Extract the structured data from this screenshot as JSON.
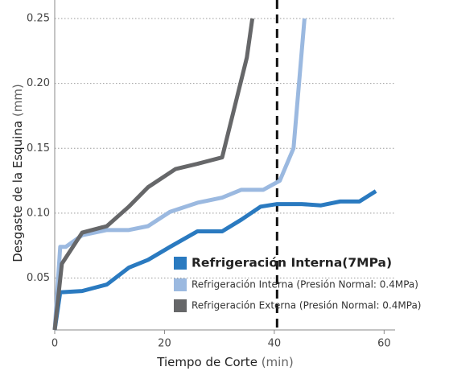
{
  "chart_data": {
    "type": "line",
    "y_label": "Desgaste de la Esquina",
    "y_unit": "(mm)",
    "x_label": "Tiempo de Corte",
    "x_unit": "(min)",
    "xlim": [
      0,
      62
    ],
    "xticks": [
      0,
      20,
      40,
      60
    ],
    "ylim": [
      0.01,
      0.25
    ],
    "yticks": [
      {
        "value": 0.05,
        "label": "0.05"
      },
      {
        "value": 0.1,
        "label": "0.10"
      },
      {
        "value": 0.15,
        "label": "0.15"
      },
      {
        "value": 0.2,
        "label": "0.20"
      },
      {
        "value": 0.25,
        "label": "0.25"
      }
    ],
    "grid": true,
    "legend": "lower right",
    "reference_x": 40.5,
    "series": [
      {
        "name": "Refrigeración Interna(7MPa)",
        "color": "#2a7ac0",
        "x": [
          0,
          1,
          5,
          9.5,
          13.5,
          17,
          21,
          26,
          30.5,
          34,
          37.5,
          40.5,
          45,
          48.5,
          52,
          55.5,
          58.5
        ],
        "values": [
          0.01,
          0.039,
          0.04,
          0.045,
          0.058,
          0.064,
          0.074,
          0.086,
          0.086,
          0.095,
          0.105,
          0.107,
          0.107,
          0.106,
          0.109,
          0.109,
          0.117
        ]
      },
      {
        "name": "Refrigeración Interna (Presión Normal: 0.4MPa)",
        "color": "#9bb9e0",
        "x": [
          0,
          1,
          2,
          5,
          9.5,
          13.5,
          17,
          21,
          26,
          30.5,
          34,
          38,
          41,
          43.5,
          45.5
        ],
        "values": [
          0.01,
          0.074,
          0.074,
          0.083,
          0.087,
          0.087,
          0.09,
          0.101,
          0.108,
          0.112,
          0.118,
          0.118,
          0.125,
          0.15,
          0.25
        ]
      },
      {
        "name": "Refrigeración Externa (Presión Normal: 0.4MPa)",
        "color": "#666769",
        "x": [
          0,
          1.3,
          5,
          9.5,
          13.5,
          17,
          22,
          26,
          30.5,
          35,
          36
        ],
        "values": [
          0.01,
          0.061,
          0.085,
          0.09,
          0.105,
          0.12,
          0.134,
          0.138,
          0.143,
          0.22,
          0.25
        ]
      }
    ]
  }
}
